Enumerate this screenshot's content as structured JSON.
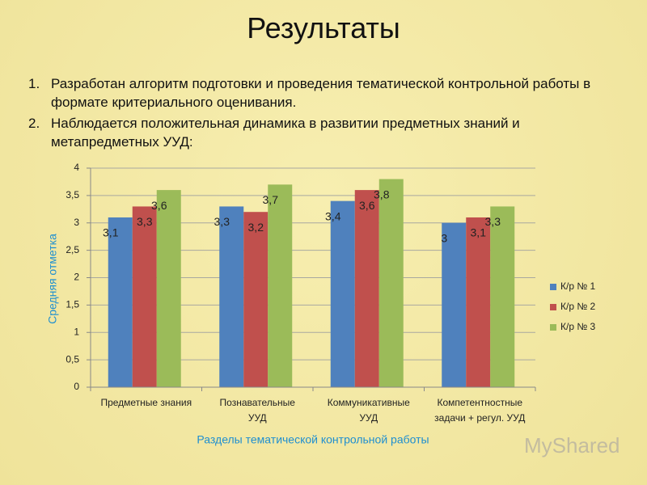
{
  "title": "Результаты",
  "items": [
    {
      "marker": "1.",
      "text": "Разработан алгоритм подготовки и проведения тематической контрольной работы в формате критериального оценивания."
    },
    {
      "marker": "2.",
      "text": "Наблюдается положительная динамика в развитии предметных знаний и метапредметных УУД:"
    }
  ],
  "watermark": "MyShared",
  "chart_data": {
    "type": "bar",
    "categories": [
      "Предметные знания",
      "Познавательные\nУУД",
      "Коммуникативные\nУУД",
      "Компетентностные\nзадачи + регул. УУД"
    ],
    "series": [
      {
        "name": "К/р № 1",
        "color": "#4f81bd",
        "values": [
          3.1,
          3.3,
          3.4,
          3
        ],
        "value_labels": [
          "3,1",
          "3,3",
          "3,4",
          "3"
        ]
      },
      {
        "name": "К/р № 2",
        "color": "#c0504d",
        "values": [
          3.3,
          3.2,
          3.6,
          3.1
        ],
        "value_labels": [
          "3,3",
          "3,2",
          "3,6",
          "3,1"
        ]
      },
      {
        "name": "К/р № 3",
        "color": "#9bbb59",
        "values": [
          3.6,
          3.7,
          3.8,
          3.3
        ],
        "value_labels": [
          "3,6",
          "3,7",
          "3,8",
          "3,3"
        ]
      }
    ],
    "ylim": [
      0,
      4
    ],
    "yticks": [
      0,
      {
        "value": 0.5,
        "label": "0,5"
      },
      1,
      {
        "value": 1.5,
        "label": "1,5"
      },
      2,
      {
        "value": 2.5,
        "label": "2,5"
      },
      3,
      {
        "value": 3.5,
        "label": "3,5"
      },
      4
    ],
    "ylabel": "Средняя отметка",
    "xlabel": "Разделы тематической контрольной работы",
    "grid": true,
    "legend": "right"
  }
}
